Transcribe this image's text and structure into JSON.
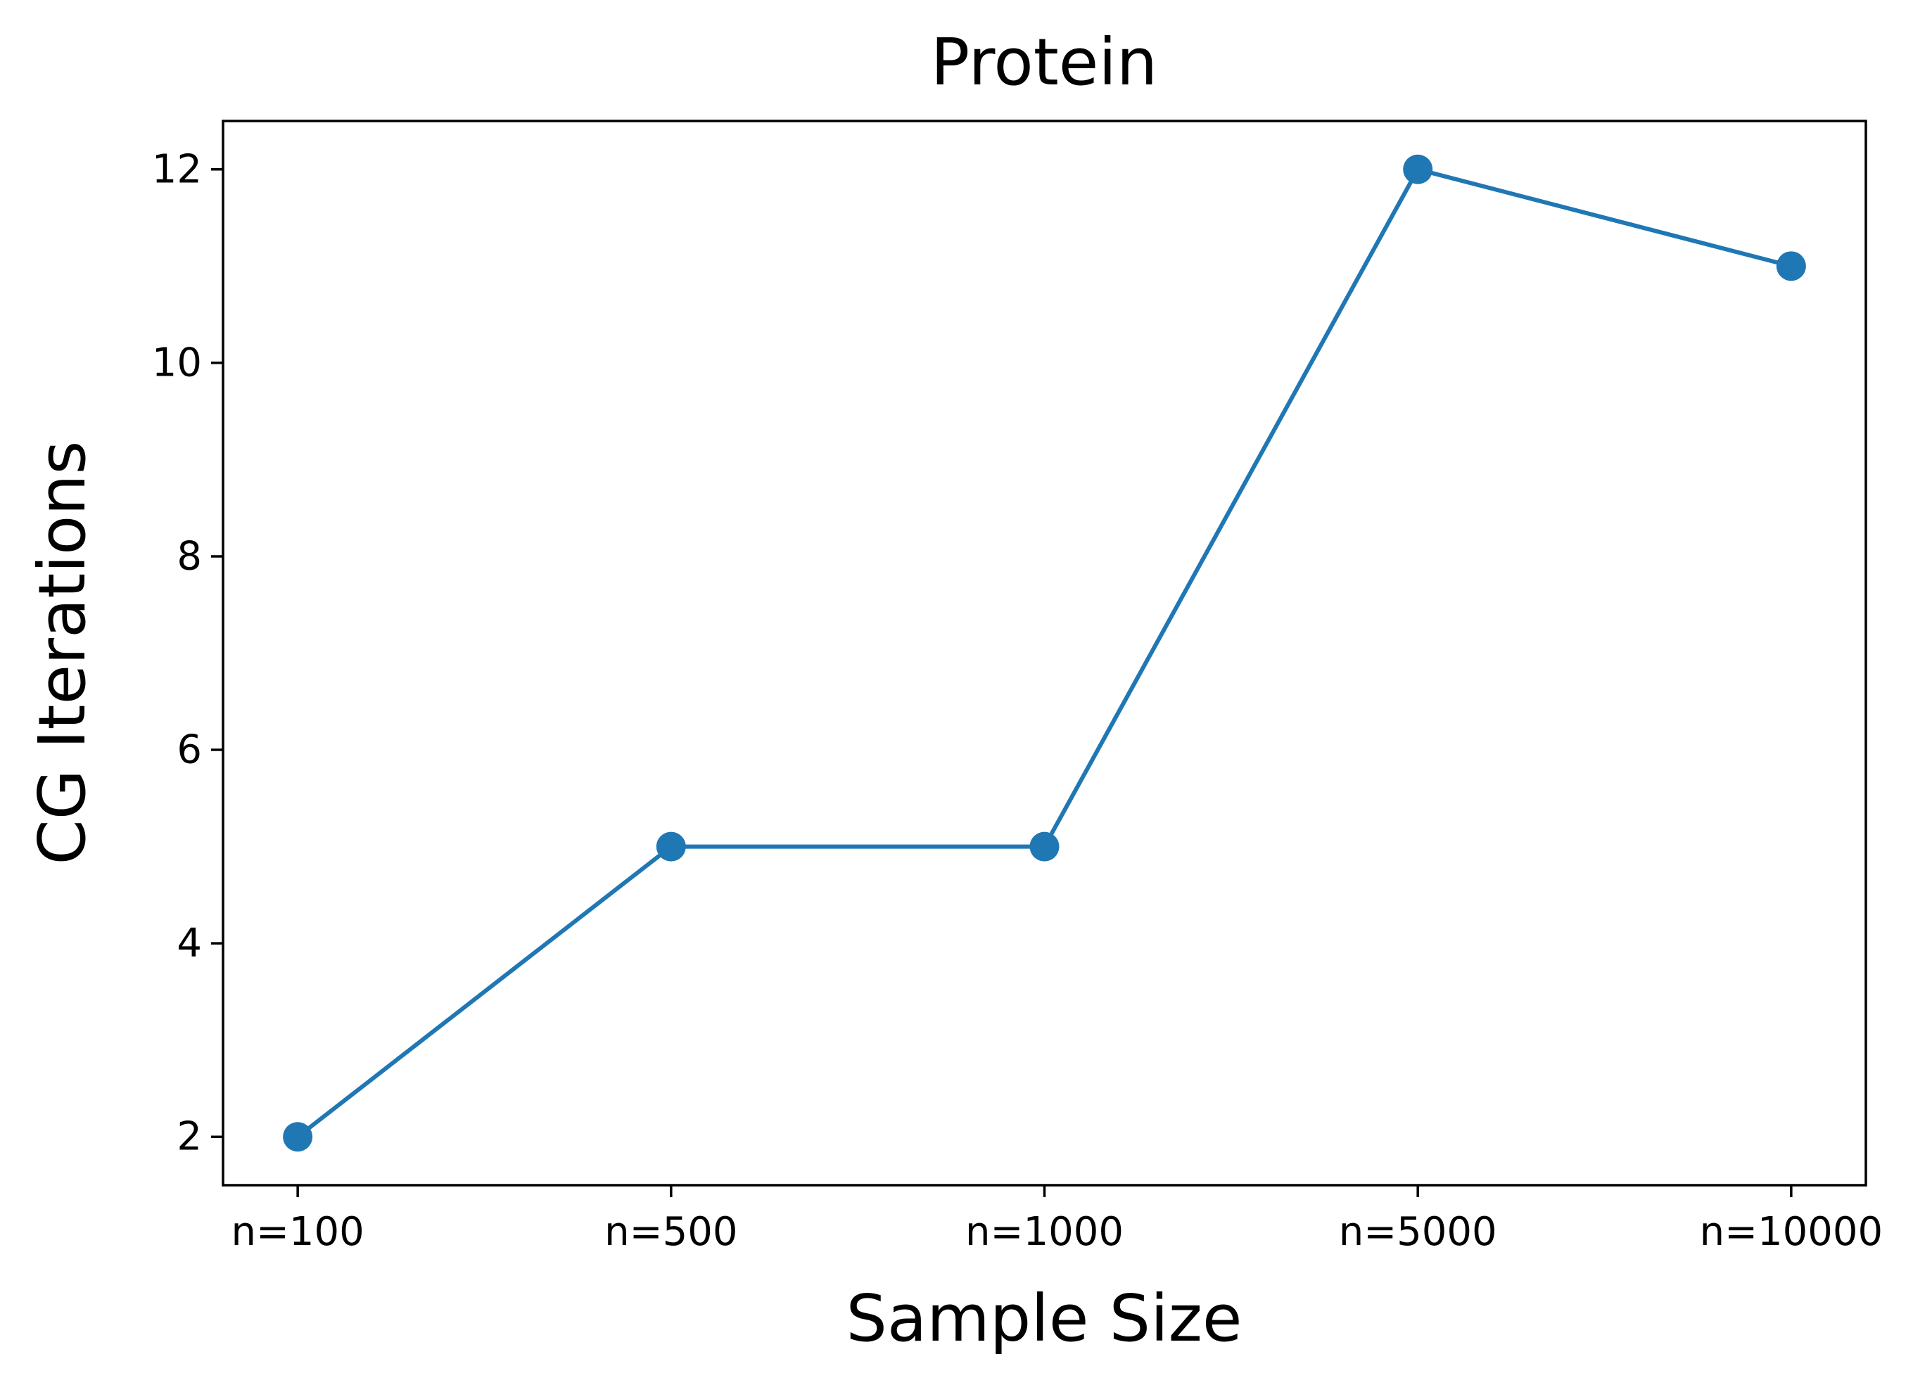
{
  "chart_data": {
    "type": "line",
    "title": "Protein",
    "xlabel": "Sample Size",
    "ylabel": "CG Iterations",
    "categories": [
      "n=100",
      "n=500",
      "n=1000",
      "n=5000",
      "n=10000"
    ],
    "series": [
      {
        "values": [
          2,
          5,
          5,
          12,
          11
        ],
        "color": "#1f77b4",
        "marker": "circle"
      }
    ],
    "ylim": [
      1.5,
      12.5
    ],
    "yticks": [
      2,
      4,
      6,
      8,
      10,
      12
    ],
    "grid": false,
    "legend": "none"
  }
}
